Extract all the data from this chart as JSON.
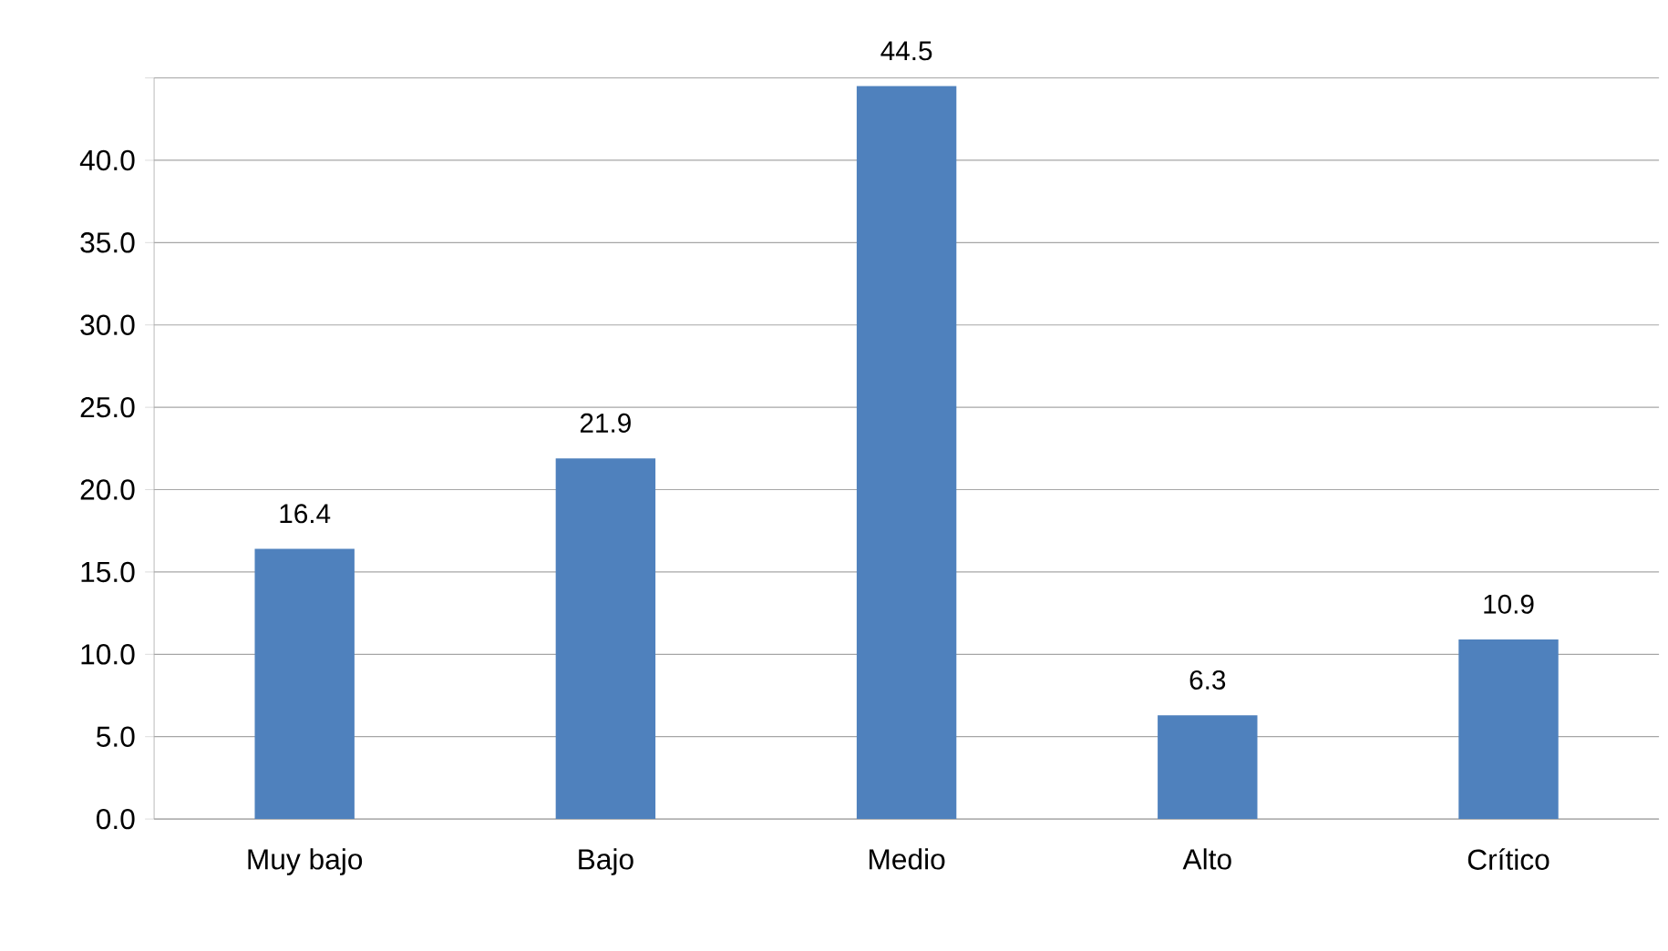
{
  "chart_data": {
    "type": "bar",
    "categories": [
      "Muy bajo",
      "Bajo",
      "Medio",
      "Alto",
      "Crítico"
    ],
    "values": [
      16.4,
      21.9,
      44.5,
      6.3,
      10.9
    ],
    "color": "#4f81bd",
    "ylim": [
      0,
      45
    ],
    "yticks": [
      {
        "value": 0,
        "label": "0.0"
      },
      {
        "value": 5,
        "label": "5.0"
      },
      {
        "value": 10,
        "label": "10.0"
      },
      {
        "value": 15,
        "label": "15.0"
      },
      {
        "value": 20,
        "label": "20.0"
      },
      {
        "value": 25,
        "label": "25.0"
      },
      {
        "value": 30,
        "label": "30.0"
      },
      {
        "value": 35,
        "label": "35.0"
      },
      {
        "value": 40,
        "label": "40.0"
      },
      {
        "value": 45,
        "label": null
      }
    ],
    "grid": "y",
    "data_labels": true
  }
}
